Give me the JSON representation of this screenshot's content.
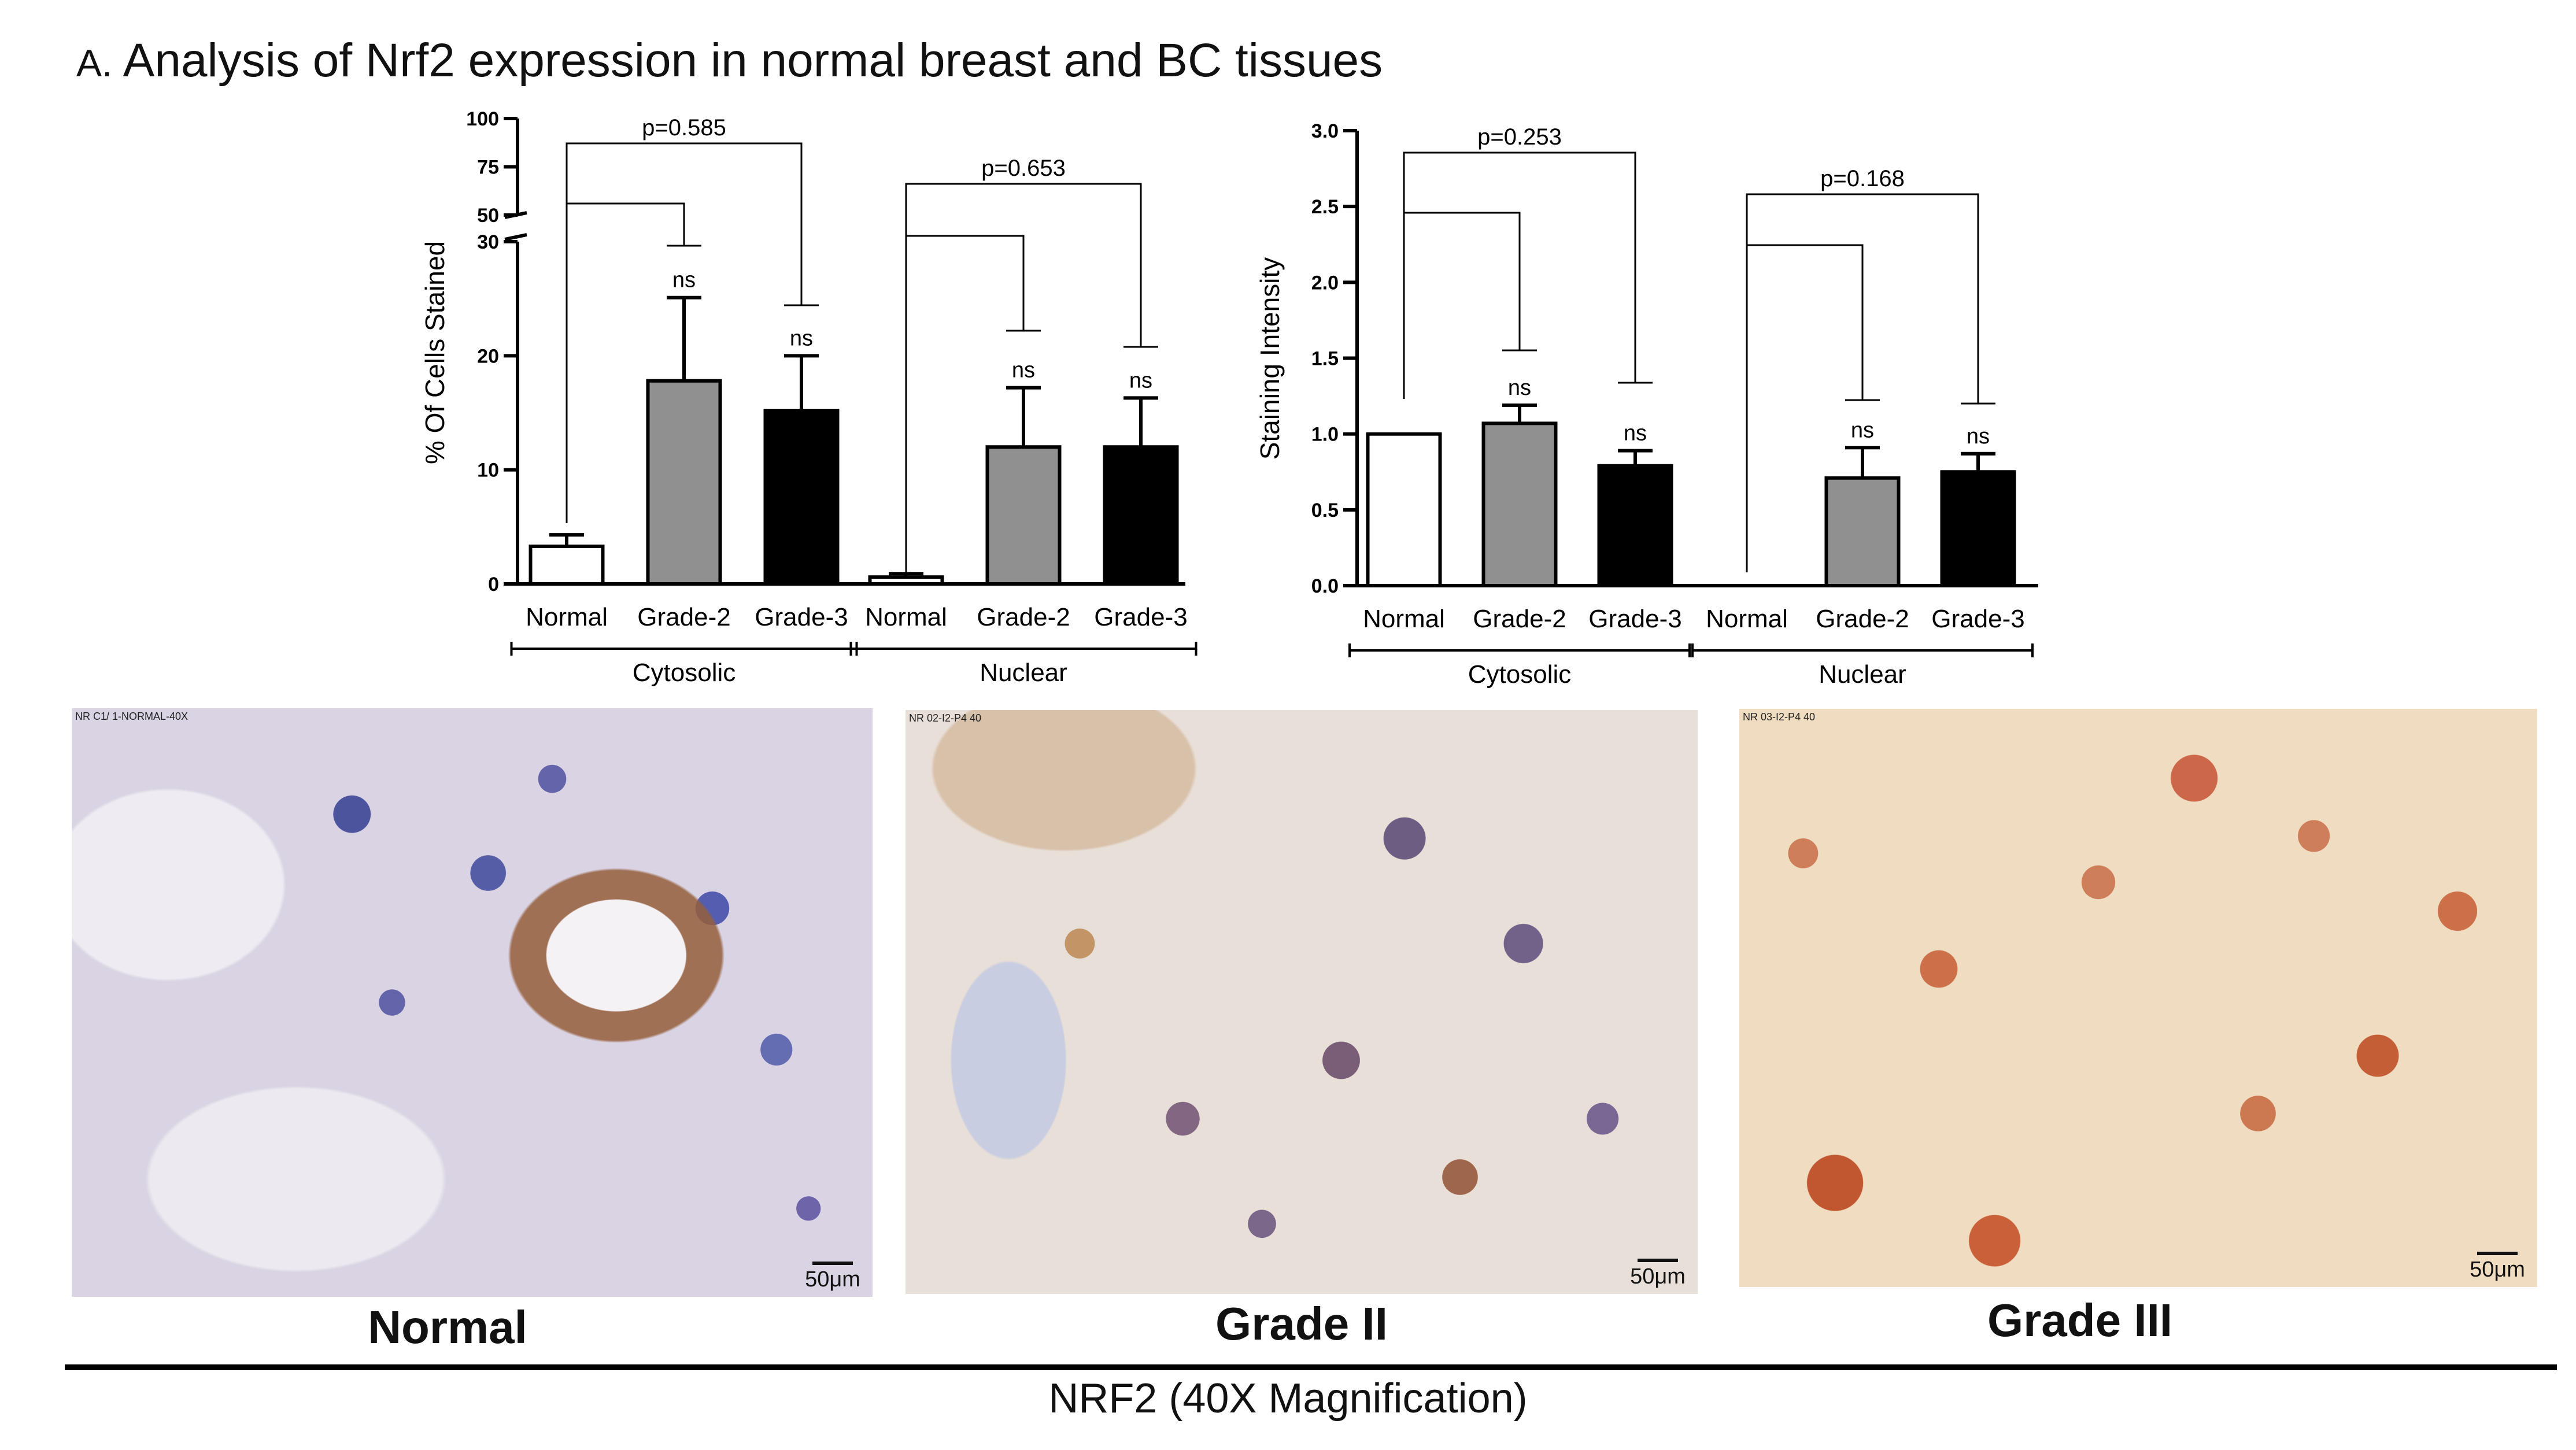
{
  "figure": {
    "panel_letter": "A.",
    "title": "Analysis of Nrf2 expression in normal breast and BC tissues",
    "caption": "NRF2 (40X Magnification)"
  },
  "chart_data": [
    {
      "type": "bar",
      "ylabel": "% Of Cells Stained",
      "yaxis": {
        "broken": true,
        "lower_range": [
          0,
          30
        ],
        "upper_range": [
          50,
          100
        ],
        "lower_ticks": [
          0,
          10,
          20,
          30
        ],
        "upper_ticks": [
          50,
          75,
          100
        ]
      },
      "groups": [
        {
          "label": "Cytosolic",
          "categories": [
            "Normal",
            "Grade-2",
            "Grade-3"
          ],
          "values": [
            3.3,
            17.8,
            15.2
          ],
          "errors": [
            1.0,
            7.3,
            4.8
          ],
          "ns_labels": [
            "",
            "ns",
            "ns"
          ]
        },
        {
          "label": "Nuclear",
          "categories": [
            "Normal",
            "Grade-2",
            "Grade-3"
          ],
          "values": [
            0.6,
            12.0,
            12.0
          ],
          "errors": [
            0.3,
            5.2,
            4.3
          ],
          "ns_labels": [
            "",
            "ns",
            "ns"
          ]
        }
      ],
      "pvalues": [
        "p=0.585",
        "p=0.653"
      ],
      "bar_colors": [
        "#ffffff",
        "#909090",
        "#000000"
      ]
    },
    {
      "type": "bar",
      "ylabel": "Staining Intensity",
      "yaxis": {
        "range": [
          0,
          3.0
        ],
        "ticks": [
          "0.0",
          "0.5",
          "1.0",
          "1.5",
          "2.0",
          "2.5",
          "3.0"
        ]
      },
      "groups": [
        {
          "label": "Cytosolic",
          "categories": [
            "Normal",
            "Grade-2",
            "Grade-3"
          ],
          "values": [
            1.0,
            1.07,
            0.79
          ],
          "errors": [
            0.0,
            0.12,
            0.1
          ],
          "ns_labels": [
            "",
            "ns",
            "ns"
          ]
        },
        {
          "label": "Nuclear",
          "categories": [
            "Normal",
            "Grade-2",
            "Grade-3"
          ],
          "values": [
            0.0,
            0.71,
            0.75
          ],
          "errors": [
            0.0,
            0.2,
            0.12
          ],
          "ns_labels": [
            "",
            "ns",
            "ns"
          ]
        }
      ],
      "pvalues": [
        "p=0.253",
        "p=0.168"
      ],
      "bar_colors": [
        "#ffffff",
        "#909090",
        "#000000"
      ]
    }
  ],
  "micrographs": [
    {
      "label": "Normal",
      "stamp": "NR C1/ 1-NORMAL-40X",
      "scale": "50μm"
    },
    {
      "label": "Grade II",
      "stamp": "NR 02-I2-P4 40",
      "scale": "50μm"
    },
    {
      "label": "Grade III",
      "stamp": "NR 03-I2-P4 40",
      "scale": "50μm"
    }
  ]
}
